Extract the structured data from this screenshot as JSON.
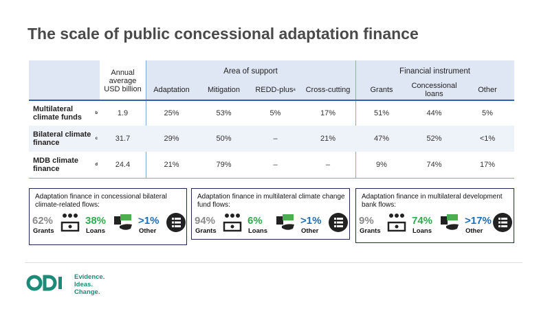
{
  "title": "The scale of public concessional adaptation finance",
  "table": {
    "annual_header": "Annual average USD billion",
    "groups": [
      {
        "label": "Area of support",
        "columns": [
          {
            "label": "Adaptation"
          },
          {
            "label": "Mitigation"
          },
          {
            "label": "REDD-plus",
            "note": "a"
          },
          {
            "label": "Cross-cutting"
          }
        ]
      },
      {
        "label": "Financial instrument",
        "columns": [
          {
            "label": "Grants"
          },
          {
            "label": "Concessional loans"
          },
          {
            "label": "Other"
          }
        ]
      }
    ],
    "rows": [
      {
        "label": "Multilateral climate funds",
        "note": "b",
        "cells": [
          "1.9",
          "25%",
          "53%",
          "5%",
          "17%",
          "51%",
          "44%",
          "5%"
        ]
      },
      {
        "label": "Bilateral climate finance",
        "note": "c",
        "cells": [
          "31.7",
          "29%",
          "50%",
          "–",
          "21%",
          "47%",
          "52%",
          "<1%"
        ]
      },
      {
        "label": "MDB climate finance",
        "note": "d",
        "cells": [
          "24.4",
          "21%",
          "79%",
          "–",
          "–",
          "9%",
          "74%",
          "17%"
        ]
      }
    ]
  },
  "boxes": [
    {
      "title": "Adaptation finance in concessional bilateral climate-related flows:",
      "items": [
        {
          "value": "62%",
          "label": "Grants"
        },
        {
          "value": "38%",
          "label": "Loans"
        },
        {
          "value": ">1%",
          "label": "Other"
        }
      ]
    },
    {
      "title": "Adaptation finance in multilateral climate change fund flows:",
      "items": [
        {
          "value": "94%",
          "label": "Grants"
        },
        {
          "value": "6%",
          "label": "Loans"
        },
        {
          "value": ">1%",
          "label": "Other"
        }
      ]
    },
    {
      "title": "Adaptation finance in multilateral development bank flows:",
      "items": [
        {
          "value": "9%",
          "label": "Grants"
        },
        {
          "value": "74%",
          "label": "Loans"
        },
        {
          "value": ">17%",
          "label": "Other"
        }
      ]
    }
  ],
  "logo": {
    "name": "ODI",
    "tagline": [
      "Evidence.",
      "Ideas.",
      "Change."
    ]
  }
}
